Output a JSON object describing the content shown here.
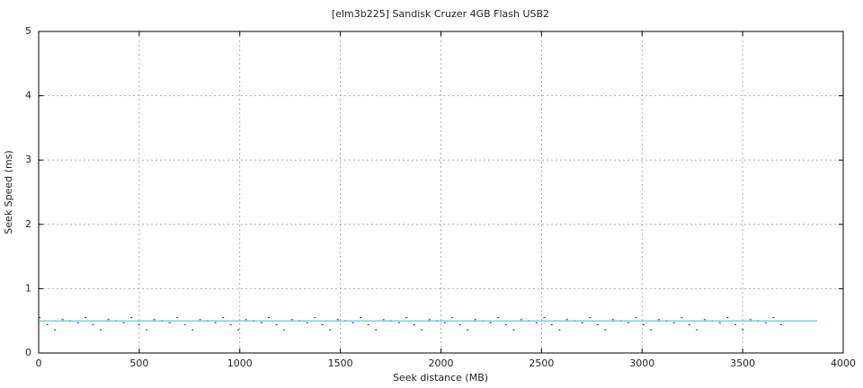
{
  "chart_data": {
    "type": "scatter",
    "title": "[elm3b225] Sandisk Cruzer 4GB Flash USB2",
    "x_label": "Seek distance (MB)",
    "y_label": "Seek Speed (ms)",
    "xlim": [
      0,
      4000
    ],
    "xticks": [
      0,
      500,
      1000,
      1500,
      2000,
      2500,
      3000,
      3500,
      4000
    ],
    "ylim": [
      0,
      5
    ],
    "yticks": [
      0,
      1,
      2,
      3,
      4,
      5
    ],
    "grid": true,
    "series": [
      {
        "color": "#9400d3",
        "x": [
          5,
          43,
          81,
          119,
          157,
          195,
          233,
          271,
          309,
          347,
          385,
          423,
          461,
          499,
          537,
          575,
          613,
          651,
          689,
          727,
          765,
          803,
          841,
          879,
          917,
          955,
          993,
          1031,
          1069,
          1107,
          1145,
          1183,
          1221,
          1259,
          1297,
          1335,
          1373,
          1411,
          1449,
          1487,
          1525,
          1563,
          1601,
          1639,
          1677,
          1715,
          1753,
          1791,
          1829,
          1867,
          1905,
          1943,
          1981,
          2019,
          2057,
          2095,
          2133,
          2171,
          2209,
          2247,
          2285,
          2323,
          2361,
          2399,
          2437,
          2475,
          2513,
          2551,
          2589,
          2627,
          2665,
          2703,
          2741,
          2779,
          2817,
          2855,
          2893,
          2931,
          2969,
          3007,
          3045,
          3083,
          3121,
          3159,
          3197,
          3235,
          3273,
          3311,
          3349,
          3387,
          3425,
          3463,
          3501,
          3539,
          3577,
          3615,
          3653,
          3691
        ],
        "values": [
          0.55,
          0.44,
          0.36,
          0.52,
          0.5,
          0.47,
          0.55,
          0.44,
          0.36,
          0.52,
          0.5,
          0.47,
          0.55,
          0.44,
          0.36,
          0.52,
          0.5,
          0.47,
          0.55,
          0.44,
          0.36,
          0.52,
          0.5,
          0.47,
          0.55,
          0.44,
          0.36,
          0.52,
          0.5,
          0.47,
          0.55,
          0.44,
          0.36,
          0.52,
          0.5,
          0.47,
          0.55,
          0.44,
          0.36,
          0.52,
          0.5,
          0.47,
          0.55,
          0.44,
          0.36,
          0.52,
          0.5,
          0.47,
          0.55,
          0.44,
          0.36,
          0.52,
          0.5,
          0.47,
          0.55,
          0.44,
          0.36,
          0.52,
          0.5,
          0.47,
          0.55,
          0.44,
          0.36,
          0.52,
          0.5,
          0.47,
          0.55,
          0.44,
          0.36,
          0.52,
          0.5,
          0.47,
          0.55,
          0.44,
          0.36,
          0.52,
          0.5,
          0.47,
          0.55,
          0.44,
          0.36,
          0.52,
          0.5,
          0.47,
          0.55,
          0.44,
          0.36,
          0.52,
          0.5,
          0.47,
          0.55,
          0.44,
          0.36,
          0.52,
          0.5,
          0.47,
          0.55,
          0.44
        ]
      },
      {
        "type": "line",
        "color": "#33bbdd",
        "x": [
          0,
          3870
        ],
        "values": [
          0.5,
          0.5
        ]
      }
    ]
  }
}
